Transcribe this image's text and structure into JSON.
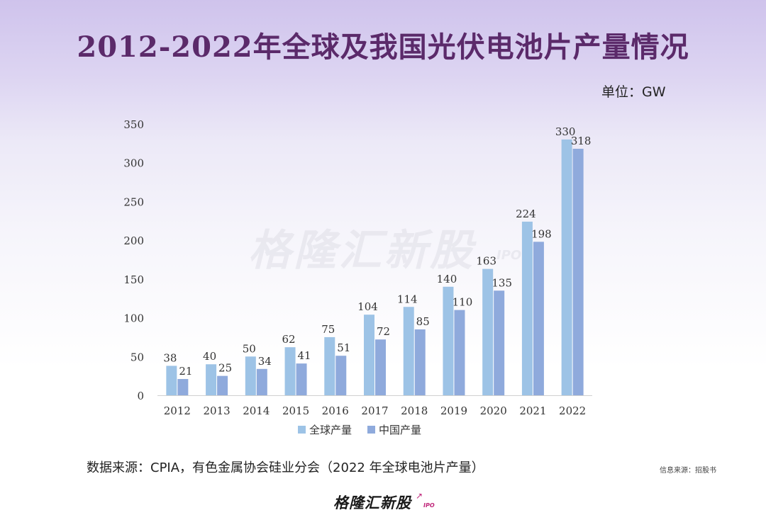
{
  "page": {
    "title": "2012-2022年全球及我国光伏电池片产量情况",
    "unit": "单位：GW",
    "source": "数据来源：CPIA，有色金属协会硅业分会（2022 年全球电池片产量）",
    "credit": "信息来源：招股书",
    "brand": "格隆汇新股",
    "brand_sub": "IPO",
    "watermark": "格隆汇新股",
    "watermark_sub": "IPO"
  },
  "colors": {
    "global": "#9dc3e6",
    "china": "#8faadc",
    "title": "#5b2a6a"
  },
  "chart_data": {
    "type": "bar",
    "categories": [
      "2012",
      "2013",
      "2014",
      "2015",
      "2016",
      "2017",
      "2018",
      "2019",
      "2020",
      "2021",
      "2022"
    ],
    "series": [
      {
        "name": "全球产量",
        "values": [
          38,
          40,
          50,
          62,
          75,
          104,
          114,
          140,
          163,
          224,
          330
        ]
      },
      {
        "name": "中国产量",
        "values": [
          21,
          25,
          34,
          41,
          51,
          72,
          85,
          110,
          135,
          198,
          318
        ]
      }
    ],
    "yticks": [
      0,
      50,
      100,
      150,
      200,
      250,
      300,
      350
    ],
    "ylim": [
      0,
      350
    ],
    "title": "",
    "xlabel": "",
    "ylabel": "",
    "legend": "bottom",
    "grid": false
  }
}
